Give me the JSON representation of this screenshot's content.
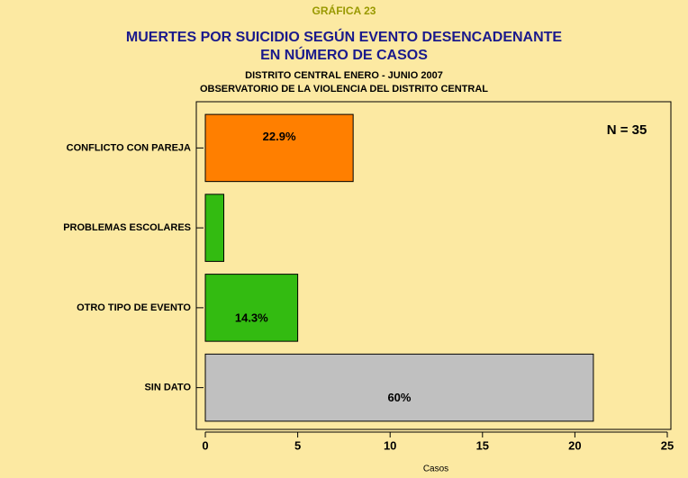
{
  "chart_data": {
    "type": "bar",
    "orientation": "horizontal",
    "overtitle": "GRÁFICA 23",
    "title": [
      "MUERTES POR SUICIDIO SEGÚN EVENTO DESENCADENANTE",
      "EN NÚMERO DE CASOS"
    ],
    "subtitle": [
      "DISTRITO CENTRAL ENERO - JUNIO 2007",
      "OBSERVATORIO DE LA VIOLENCIA DEL DISTRITO CENTRAL"
    ],
    "annotation": "N = 35",
    "xlabel": "Casos",
    "categories": [
      "CONFLICTO CON PAREJA",
      "PROBLEMAS ESCOLARES",
      "OTRO TIPO DE EVENTO",
      "SIN DATO"
    ],
    "values": [
      8,
      1,
      5,
      21
    ],
    "colors": [
      "#ff7f00",
      "#33bb11",
      "#33bb11",
      "#c0c0c0"
    ],
    "share_labels": [
      {
        "value": 22.9,
        "label": "22.9%"
      },
      null,
      {
        "value": 14.3,
        "label": "14.3%"
      },
      {
        "value": 60,
        "label": "60%"
      }
    ],
    "xlim": [
      0,
      25
    ],
    "xticks": [
      0,
      5,
      10,
      15,
      20,
      25
    ]
  }
}
